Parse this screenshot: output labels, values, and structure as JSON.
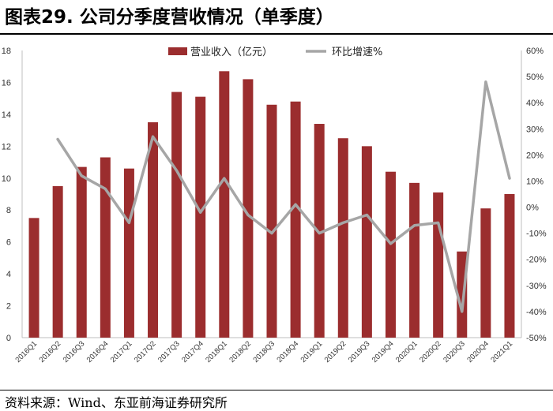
{
  "header": {
    "title": "图表29. 公司分季度营收情况（单季度）"
  },
  "footer": {
    "source": "资料来源：Wind、东亚前海证券研究所"
  },
  "colors": {
    "bar": "#9b2d2e",
    "line": "#a6a6a6",
    "axis": "#bfbfbf"
  },
  "chart_data": {
    "type": "bar",
    "categories": [
      "2016Q1",
      "2016Q2",
      "2016Q3",
      "2016Q4",
      "2017Q1",
      "2017Q2",
      "2017Q3",
      "2017Q4",
      "2018Q1",
      "2018Q2",
      "2018Q3",
      "2018Q4",
      "2019Q1",
      "2019Q2",
      "2019Q3",
      "2019Q4",
      "2020Q1",
      "2020Q2",
      "2020Q3",
      "2020Q4",
      "2021Q1"
    ],
    "series": [
      {
        "name": "营业收入（亿元）",
        "type": "bar",
        "axis": "left",
        "values": [
          7.5,
          9.5,
          10.7,
          11.3,
          10.6,
          13.5,
          15.4,
          15.1,
          16.7,
          16.2,
          14.6,
          14.8,
          13.4,
          12.5,
          12.0,
          10.4,
          9.7,
          9.1,
          5.4,
          8.1,
          9.0
        ]
      },
      {
        "name": "环比增速%",
        "type": "line",
        "axis": "right",
        "values": [
          null,
          26,
          12,
          7,
          -6,
          27,
          14,
          -2,
          11,
          -3,
          -10,
          1,
          -10,
          -6,
          -3,
          -14,
          -7,
          -6,
          -40,
          48,
          11
        ]
      }
    ],
    "ylim_left": [
      0,
      18
    ],
    "yticks_left": [
      0,
      2,
      4,
      6,
      8,
      10,
      12,
      14,
      16,
      18
    ],
    "ylim_right": [
      -50,
      60
    ],
    "yticks_right": [
      "-50%",
      "-40%",
      "-30%",
      "-20%",
      "-10%",
      "0%",
      "10%",
      "20%",
      "30%",
      "40%",
      "50%",
      "60%"
    ],
    "legend_position": "top",
    "grid": false
  }
}
